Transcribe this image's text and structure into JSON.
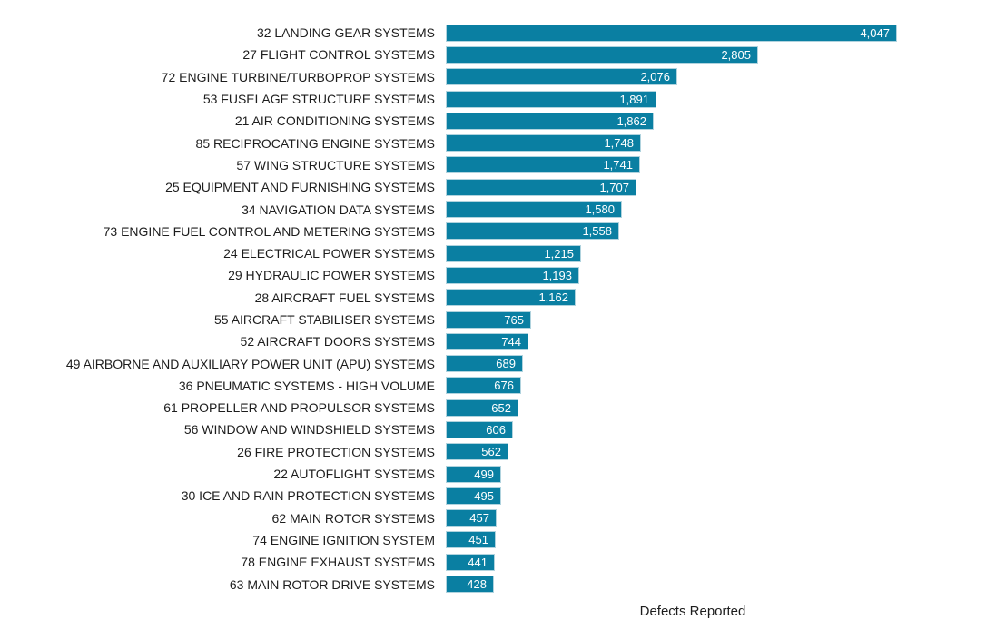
{
  "chart_data": {
    "type": "bar",
    "orientation": "horizontal",
    "title": "",
    "xlabel": "Defects Reported",
    "ylabel": "",
    "legend": "none",
    "grid": "off",
    "xlim": [
      0,
      4430
    ],
    "sort": "descending",
    "categories": [
      "32 LANDING GEAR SYSTEMS",
      "27 FLIGHT CONTROL SYSTEMS",
      "72 ENGINE TURBINE/TURBOPROP SYSTEMS",
      "53 FUSELAGE STRUCTURE SYSTEMS",
      "21 AIR CONDITIONING SYSTEMS",
      "85 RECIPROCATING ENGINE SYSTEMS",
      "57 WING STRUCTURE SYSTEMS",
      "25 EQUIPMENT AND FURNISHING SYSTEMS",
      "34 NAVIGATION DATA SYSTEMS",
      "73 ENGINE FUEL CONTROL AND METERING SYSTEMS",
      "24 ELECTRICAL POWER SYSTEMS",
      "29 HYDRAULIC POWER SYSTEMS",
      "28 AIRCRAFT FUEL SYSTEMS",
      "55 AIRCRAFT STABILISER SYSTEMS",
      "52 AIRCRAFT DOORS SYSTEMS",
      "49 AIRBORNE AND AUXILIARY POWER UNIT (APU) SYSTEMS",
      "36 PNEUMATIC SYSTEMS - HIGH VOLUME",
      "61 PROPELLER AND PROPULSOR SYSTEMS",
      "56 WINDOW AND WINDSHIELD SYSTEMS",
      "26 FIRE PROTECTION SYSTEMS",
      "22 AUTOFLIGHT SYSTEMS",
      "30 ICE AND RAIN PROTECTION SYSTEMS",
      "62 MAIN ROTOR SYSTEMS",
      "74 ENGINE IGNITION SYSTEM",
      "78 ENGINE EXHAUST SYSTEMS",
      "63 MAIN ROTOR DRIVE SYSTEMS"
    ],
    "values": [
      4047,
      2805,
      2076,
      1891,
      1862,
      1748,
      1741,
      1707,
      1580,
      1558,
      1215,
      1193,
      1162,
      765,
      744,
      689,
      676,
      652,
      606,
      562,
      499,
      495,
      457,
      451,
      441,
      428
    ],
    "value_labels": [
      "4,047",
      "2,805",
      "2,076",
      "1,891",
      "1,862",
      "1,748",
      "1,741",
      "1,707",
      "1,580",
      "1,558",
      "1,215",
      "1,193",
      "1,162",
      "765",
      "744",
      "689",
      "676",
      "652",
      "606",
      "562",
      "499",
      "495",
      "457",
      "451",
      "441",
      "428"
    ],
    "data_labels": "inside-end"
  },
  "colors": {
    "bar_fill": "#0a7fa2",
    "bar_border": "#b0d3de",
    "value_text": "#ffffff",
    "label_text": "#1d1d1d",
    "background": "#ffffff"
  }
}
